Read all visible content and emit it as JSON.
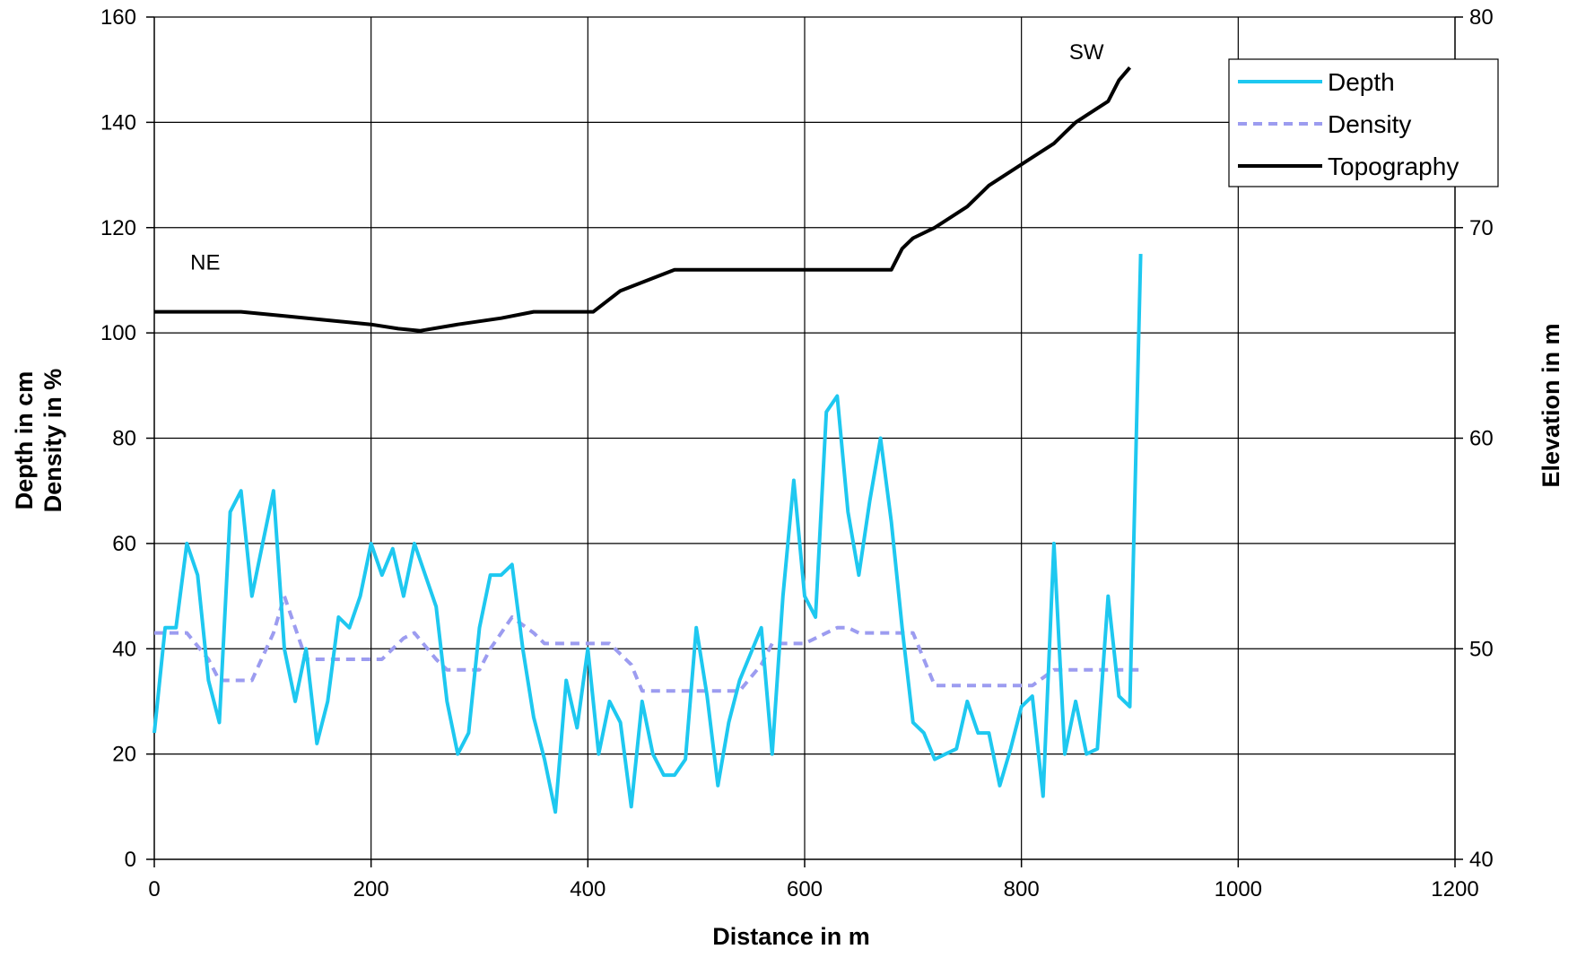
{
  "chart_data": {
    "type": "line",
    "xlabel": "Distance in m",
    "ylabel_left": [
      "Depth in cm",
      "Density in %"
    ],
    "ylabel_right": "Elevation in m",
    "xlim": [
      0,
      1200
    ],
    "ylim_left": [
      0,
      160
    ],
    "ylim_right": [
      40,
      80
    ],
    "x_ticks": [
      0,
      200,
      400,
      600,
      800,
      1000,
      1200
    ],
    "y_left_ticks": [
      0,
      20,
      40,
      60,
      80,
      100,
      120,
      140,
      160
    ],
    "y_right_ticks": [
      40,
      50,
      60,
      70,
      80
    ],
    "grid": true,
    "legend_position": "top-right",
    "annotations": [
      {
        "text": "NE",
        "x": 47,
        "y": 112
      },
      {
        "text": "SW",
        "x": 860,
        "y": 152
      }
    ],
    "series": [
      {
        "name": "Depth",
        "axis": "left",
        "color": "#1ec8f0",
        "style": "solid",
        "x": [
          0,
          10,
          20,
          30,
          40,
          50,
          60,
          70,
          80,
          90,
          100,
          110,
          120,
          130,
          140,
          150,
          160,
          170,
          180,
          190,
          200,
          210,
          220,
          230,
          240,
          250,
          260,
          270,
          280,
          290,
          300,
          310,
          320,
          330,
          340,
          350,
          360,
          370,
          380,
          390,
          400,
          410,
          420,
          430,
          440,
          450,
          460,
          470,
          480,
          490,
          500,
          510,
          520,
          530,
          540,
          550,
          560,
          570,
          580,
          590,
          600,
          610,
          620,
          630,
          640,
          650,
          660,
          670,
          680,
          690,
          700,
          710,
          720,
          730,
          740,
          750,
          760,
          770,
          780,
          790,
          800,
          810,
          820,
          830,
          840,
          850,
          860,
          870,
          880,
          890,
          900,
          910
        ],
        "y": [
          24,
          44,
          44,
          60,
          54,
          34,
          26,
          66,
          70,
          50,
          60,
          70,
          40,
          30,
          40,
          22,
          30,
          46,
          44,
          50,
          60,
          54,
          59,
          50,
          60,
          54,
          48,
          30,
          20,
          24,
          44,
          54,
          54,
          56,
          40,
          27,
          19,
          9,
          34,
          25,
          40,
          20,
          30,
          26,
          10,
          30,
          20,
          16,
          16,
          19,
          44,
          31,
          14,
          26,
          34,
          39,
          44,
          20,
          50,
          72,
          50,
          46,
          85,
          88,
          66,
          54,
          68,
          80,
          64,
          44,
          26,
          24,
          19,
          20,
          21,
          30,
          24,
          24,
          14,
          21,
          29,
          31,
          12,
          60,
          20,
          30,
          20,
          21,
          50,
          31,
          29,
          115
        ]
      },
      {
        "name": "Density",
        "axis": "left",
        "color": "#9c9cf0",
        "style": "dashed",
        "x": [
          0,
          30,
          50,
          60,
          90,
          110,
          120,
          130,
          140,
          150,
          170,
          190,
          210,
          230,
          240,
          260,
          270,
          280,
          300,
          310,
          330,
          350,
          360,
          400,
          420,
          440,
          450,
          480,
          500,
          510,
          530,
          540,
          560,
          570,
          600,
          620,
          630,
          640,
          650,
          660,
          680,
          700,
          720,
          760,
          780,
          800,
          810,
          830,
          850,
          870,
          900,
          910
        ],
        "y": [
          43,
          43,
          38,
          34,
          34,
          43,
          50,
          44,
          38,
          38,
          38,
          38,
          38,
          42,
          43,
          38,
          36,
          36,
          36,
          40,
          46,
          43,
          41,
          41,
          41,
          37,
          32,
          32,
          32,
          32,
          32,
          32,
          37,
          41,
          41,
          43,
          44,
          44,
          43,
          43,
          43,
          43,
          33,
          33,
          33,
          33,
          33,
          36,
          36,
          36,
          36,
          36
        ]
      },
      {
        "name": "Topography",
        "axis": "right",
        "color": "#000000",
        "style": "solid",
        "x": [
          0,
          30,
          60,
          80,
          120,
          160,
          200,
          225,
          245,
          280,
          320,
          350,
          380,
          405,
          430,
          440,
          460,
          480,
          500,
          540,
          580,
          620,
          660,
          680,
          690,
          700,
          720,
          750,
          770,
          800,
          830,
          840,
          850,
          880,
          890,
          900
        ],
        "y": [
          66,
          66,
          66,
          66,
          65.8,
          65.6,
          65.4,
          65.2,
          65.1,
          65.4,
          65.7,
          66,
          66,
          66,
          67,
          67.2,
          67.6,
          68,
          68,
          68,
          68,
          68,
          68,
          68,
          69,
          69.5,
          70,
          71,
          72,
          73,
          74,
          74.5,
          75,
          76,
          77,
          77.6
        ]
      }
    ]
  }
}
